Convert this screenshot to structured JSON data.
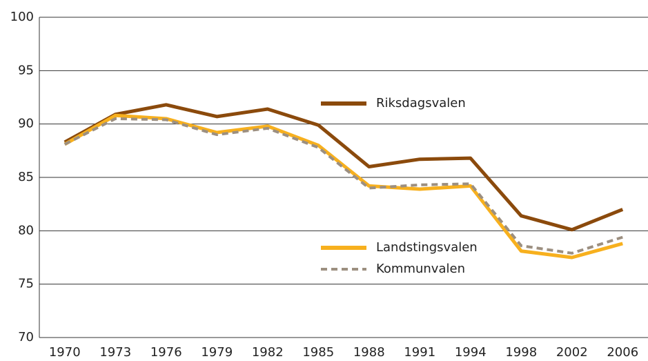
{
  "chart_data": {
    "type": "line",
    "categories": [
      "1970",
      "1973",
      "1976",
      "1979",
      "1982",
      "1985",
      "1988",
      "1991",
      "1994",
      "1998",
      "2002",
      "2006"
    ],
    "series": [
      {
        "name": "Riksdagsvalen",
        "color": "#8b4a0c",
        "line_style": "solid",
        "values": [
          88.3,
          90.9,
          91.8,
          90.7,
          91.4,
          89.9,
          86.0,
          86.7,
          86.8,
          81.4,
          80.1,
          82.0
        ]
      },
      {
        "name": "Landstingsvalen",
        "color": "#f7b01e",
        "line_style": "solid",
        "values": [
          88.1,
          90.8,
          90.5,
          89.2,
          89.8,
          88.0,
          84.2,
          83.9,
          84.2,
          78.1,
          77.5,
          78.8
        ]
      },
      {
        "name": "Kommunvalen",
        "color": "#9c8f80",
        "line_style": "dashed",
        "values": [
          88.1,
          90.5,
          90.4,
          89.0,
          89.6,
          87.8,
          84.0,
          84.3,
          84.4,
          78.6,
          77.9,
          79.4
        ]
      }
    ],
    "ylim": [
      70,
      100
    ],
    "yticks": [
      70,
      75,
      80,
      85,
      90,
      95,
      100
    ],
    "grid": true
  }
}
